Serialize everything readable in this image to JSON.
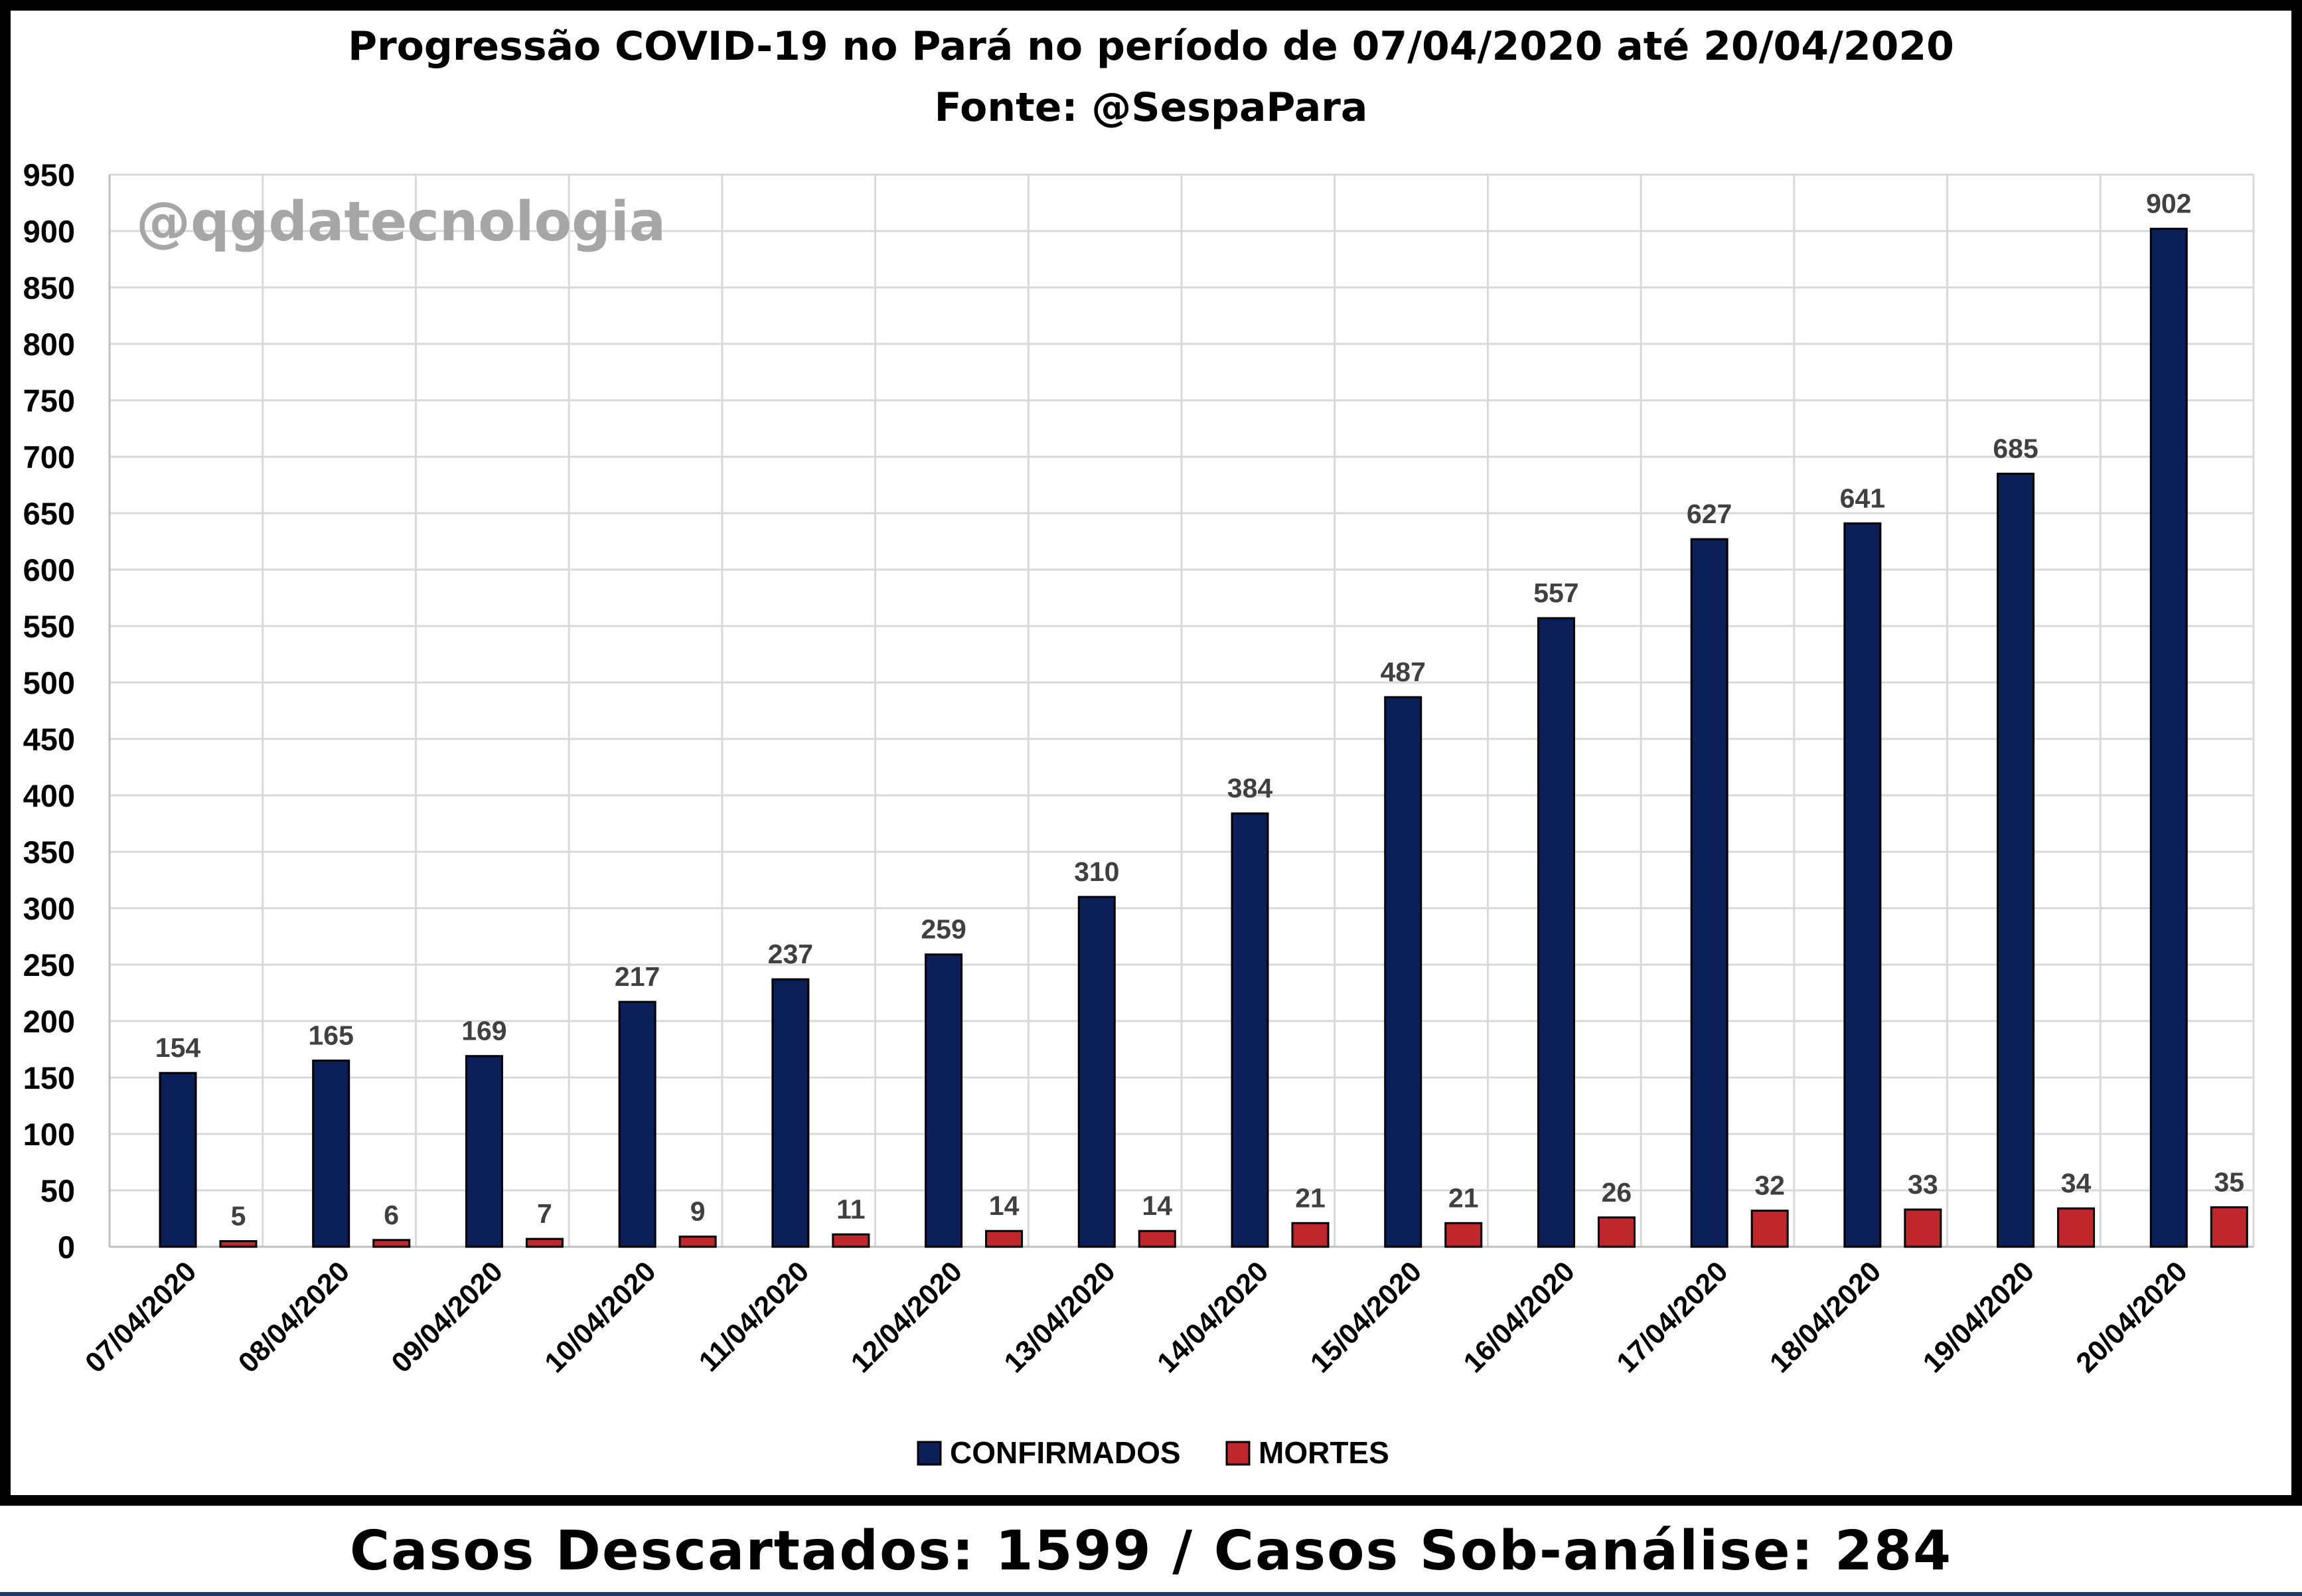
{
  "chart_data": {
    "type": "bar",
    "title": "Progressão COVID-19 no Pará no período de 07/04/2020 até 20/04/2020",
    "subtitle": "Fonte: @SespaPara",
    "watermark": "@qgdatecnologia",
    "categories": [
      "07/04/2020",
      "08/04/2020",
      "09/04/2020",
      "10/04/2020",
      "11/04/2020",
      "12/04/2020",
      "13/04/2020",
      "14/04/2020",
      "15/04/2020",
      "16/04/2020",
      "17/04/2020",
      "18/04/2020",
      "19/04/2020",
      "20/04/2020"
    ],
    "series": [
      {
        "name": "CONFIRMADOS",
        "color": "#0b1f58",
        "values": [
          154,
          165,
          169,
          217,
          237,
          259,
          310,
          384,
          487,
          557,
          627,
          641,
          685,
          902
        ]
      },
      {
        "name": "MORTES",
        "color": "#c0272d",
        "values": [
          5,
          6,
          7,
          9,
          11,
          14,
          14,
          21,
          21,
          26,
          32,
          33,
          34,
          35
        ]
      }
    ],
    "ylim": [
      0,
      950
    ],
    "y_ticks": [
      0,
      50,
      100,
      150,
      200,
      250,
      300,
      350,
      400,
      450,
      500,
      550,
      600,
      650,
      700,
      750,
      800,
      850,
      900,
      950
    ],
    "xlabel": "",
    "ylabel": "",
    "grid": true,
    "legend_position": "bottom",
    "data_labels": true
  },
  "footer": {
    "text": "Casos Descartados: 1599 / Casos Sob-análise: 284"
  }
}
